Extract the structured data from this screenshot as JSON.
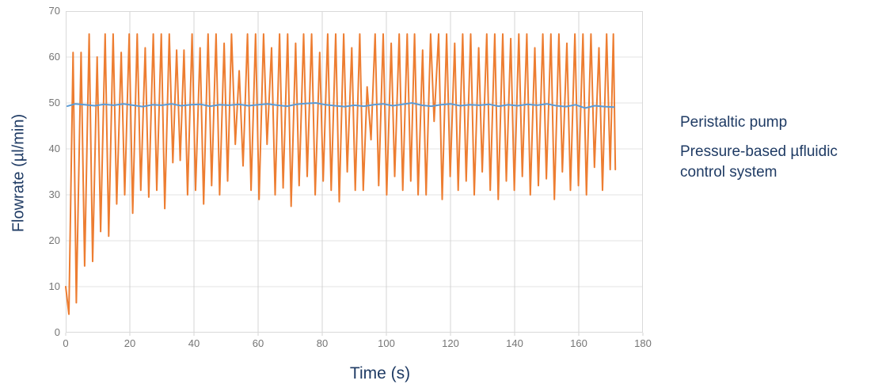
{
  "colors": {
    "background": "#FFFFFF",
    "axis_title_text": "#1F3B64",
    "legend_text": "#1F3B64",
    "tick_label_text": "#757575",
    "gridline_vertical": "#D4D4D4",
    "gridline_horizontal": "#E3E3E3",
    "plot_border": "#D9D9D9",
    "series_peristaltic": "#ED7D31",
    "series_pressure": "#5B9BD5"
  },
  "legend": {
    "items": [
      {
        "label": "Peristaltic pump",
        "swatch_color": "#ED7D31"
      },
      {
        "label": "Pressure-based µfluidic control system",
        "swatch_color": "#5B9BD5"
      }
    ]
  },
  "chart_data": {
    "type": "line",
    "title": "",
    "xlabel": "Time (s)",
    "ylabel": "Flowrate (µl/min)",
    "xlim": [
      0,
      180
    ],
    "ylim": [
      0,
      70
    ],
    "x_ticks": [
      0,
      20,
      40,
      60,
      80,
      100,
      120,
      140,
      160,
      180
    ],
    "y_ticks": [
      0,
      10,
      20,
      30,
      40,
      50,
      60,
      70
    ],
    "grid": true,
    "legend_position": "right",
    "series": [
      {
        "name": "Peristaltic pump",
        "color": "#ED7D31",
        "points": [
          [
            0,
            10
          ],
          [
            1,
            4
          ],
          [
            2.3,
            61
          ],
          [
            3.3,
            6.5
          ],
          [
            4.8,
            61
          ],
          [
            5.9,
            14.5
          ],
          [
            7.3,
            65
          ],
          [
            8.4,
            15.5
          ],
          [
            9.8,
            60
          ],
          [
            10.9,
            22
          ],
          [
            12.3,
            65
          ],
          [
            13.4,
            21
          ],
          [
            14.8,
            65
          ],
          [
            15.9,
            28
          ],
          [
            17.3,
            61
          ],
          [
            18.4,
            30
          ],
          [
            19.8,
            65
          ],
          [
            20.9,
            26
          ],
          [
            22.3,
            65
          ],
          [
            23.4,
            31
          ],
          [
            24.8,
            62
          ],
          [
            25.9,
            29.5
          ],
          [
            27.3,
            65
          ],
          [
            28.4,
            31
          ],
          [
            29.8,
            65
          ],
          [
            30.9,
            27
          ],
          [
            32.3,
            65
          ],
          [
            33.4,
            37
          ],
          [
            34.6,
            61.5
          ],
          [
            35.7,
            37.5
          ],
          [
            36.9,
            61.5
          ],
          [
            38,
            30
          ],
          [
            39.4,
            65
          ],
          [
            40.5,
            31
          ],
          [
            41.9,
            62
          ],
          [
            43,
            28
          ],
          [
            44.4,
            65
          ],
          [
            45.5,
            32
          ],
          [
            46.9,
            65
          ],
          [
            48,
            30
          ],
          [
            49.4,
            63
          ],
          [
            50.5,
            33
          ],
          [
            51.7,
            65
          ],
          [
            52.9,
            41
          ],
          [
            54.1,
            57
          ],
          [
            55.3,
            36.3
          ],
          [
            56.7,
            65
          ],
          [
            57.8,
            31
          ],
          [
            59.2,
            65
          ],
          [
            60.3,
            29
          ],
          [
            61.7,
            65
          ],
          [
            62.8,
            41
          ],
          [
            64.2,
            62
          ],
          [
            65.3,
            30
          ],
          [
            66.7,
            65
          ],
          [
            67.8,
            31.5
          ],
          [
            69.2,
            65
          ],
          [
            70.3,
            27.5
          ],
          [
            71.7,
            63
          ],
          [
            72.8,
            32
          ],
          [
            74.2,
            65
          ],
          [
            75.3,
            34
          ],
          [
            76.7,
            65
          ],
          [
            77.8,
            30
          ],
          [
            79.2,
            61
          ],
          [
            80.3,
            33
          ],
          [
            81.7,
            65
          ],
          [
            82.8,
            31
          ],
          [
            84.2,
            65
          ],
          [
            85.3,
            28.5
          ],
          [
            86.7,
            65
          ],
          [
            87.8,
            35
          ],
          [
            89.2,
            62
          ],
          [
            90.3,
            31
          ],
          [
            91.7,
            65
          ],
          [
            92.8,
            31
          ],
          [
            94,
            53.5
          ],
          [
            95.2,
            42
          ],
          [
            96.5,
            65
          ],
          [
            97.6,
            32
          ],
          [
            99,
            65
          ],
          [
            100.1,
            30
          ],
          [
            101.5,
            63
          ],
          [
            102.6,
            34
          ],
          [
            104,
            65
          ],
          [
            105.1,
            31
          ],
          [
            106.5,
            65
          ],
          [
            107.6,
            33
          ],
          [
            108.8,
            65
          ],
          [
            109.9,
            30
          ],
          [
            111.3,
            61.5
          ],
          [
            112.4,
            30
          ],
          [
            113.8,
            65
          ],
          [
            114.9,
            46
          ],
          [
            116.3,
            65
          ],
          [
            117.4,
            29
          ],
          [
            118.8,
            65
          ],
          [
            119.9,
            34
          ],
          [
            121.3,
            63
          ],
          [
            122.4,
            31
          ],
          [
            123.8,
            65
          ],
          [
            124.9,
            33
          ],
          [
            126.3,
            65
          ],
          [
            127.4,
            30
          ],
          [
            128.8,
            62
          ],
          [
            129.9,
            35
          ],
          [
            131.3,
            65
          ],
          [
            132.4,
            31
          ],
          [
            133.8,
            65
          ],
          [
            134.9,
            29
          ],
          [
            136.3,
            65
          ],
          [
            137.4,
            33
          ],
          [
            138.8,
            64
          ],
          [
            139.9,
            31
          ],
          [
            141.3,
            65
          ],
          [
            142.4,
            34
          ],
          [
            143.8,
            65
          ],
          [
            144.9,
            30
          ],
          [
            146.3,
            62
          ],
          [
            147.4,
            32
          ],
          [
            148.8,
            65
          ],
          [
            149.9,
            33.5
          ],
          [
            151.3,
            65
          ],
          [
            152.4,
            29
          ],
          [
            153.8,
            65
          ],
          [
            154.9,
            35
          ],
          [
            156.3,
            63
          ],
          [
            157.4,
            31
          ],
          [
            158.8,
            65
          ],
          [
            159.9,
            32
          ],
          [
            161.3,
            65
          ],
          [
            162.4,
            30
          ],
          [
            163.8,
            65
          ],
          [
            164.9,
            36
          ],
          [
            166.3,
            62
          ],
          [
            167.4,
            31
          ],
          [
            168.7,
            65
          ],
          [
            169.8,
            35.5
          ],
          [
            170.8,
            65
          ],
          [
            171.4,
            35.5
          ]
        ]
      },
      {
        "name": "Pressure-based µfluidic control system",
        "color": "#5B9BD5",
        "points": [
          [
            0.5,
            49.3
          ],
          [
            3,
            49.8
          ],
          [
            6,
            49.6
          ],
          [
            9,
            49.4
          ],
          [
            12,
            49.7
          ],
          [
            15,
            49.5
          ],
          [
            18,
            49.8
          ],
          [
            21,
            49.5
          ],
          [
            24,
            49.2
          ],
          [
            27,
            49.6
          ],
          [
            30,
            49.5
          ],
          [
            33,
            49.8
          ],
          [
            36,
            49.4
          ],
          [
            39,
            49.6
          ],
          [
            42,
            49.7
          ],
          [
            45,
            49.3
          ],
          [
            48,
            49.6
          ],
          [
            51,
            49.5
          ],
          [
            54,
            49.7
          ],
          [
            57,
            49.4
          ],
          [
            60,
            49.6
          ],
          [
            63,
            49.8
          ],
          [
            66,
            49.5
          ],
          [
            69,
            49.3
          ],
          [
            72,
            49.7
          ],
          [
            75,
            49.9
          ],
          [
            78,
            50
          ],
          [
            81,
            49.6
          ],
          [
            84,
            49.4
          ],
          [
            87,
            49.2
          ],
          [
            90,
            49.5
          ],
          [
            93,
            49.3
          ],
          [
            96,
            49.6
          ],
          [
            99,
            49.8
          ],
          [
            102,
            49.4
          ],
          [
            105,
            49.7
          ],
          [
            108,
            50
          ],
          [
            111,
            49.5
          ],
          [
            114,
            49.3
          ],
          [
            117,
            49.6
          ],
          [
            120,
            49.8
          ],
          [
            123,
            49.4
          ],
          [
            126,
            49.6
          ],
          [
            129,
            49.5
          ],
          [
            132,
            49.7
          ],
          [
            135,
            49.3
          ],
          [
            138,
            49.6
          ],
          [
            141,
            49.4
          ],
          [
            144,
            49.7
          ],
          [
            147,
            49.5
          ],
          [
            150,
            49.8
          ],
          [
            153,
            49.4
          ],
          [
            156,
            49.2
          ],
          [
            159,
            49.6
          ],
          [
            162,
            48.9
          ],
          [
            165,
            49.4
          ],
          [
            168,
            49.2
          ],
          [
            171,
            49.1
          ]
        ]
      }
    ]
  }
}
